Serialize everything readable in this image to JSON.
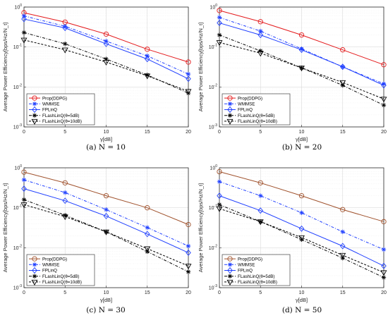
{
  "chart_data": [
    {
      "type": "line",
      "caption": "(a) N = 10",
      "x": [
        0,
        5,
        10,
        15,
        20
      ],
      "xlim": [
        0,
        20
      ],
      "ylim": [
        0.001,
        1
      ],
      "yscale": "log",
      "xlabel": "γ[dB]",
      "ylabel": "Average Power Efficiency[bps/Hz/N_t]",
      "grid": true,
      "legend_position": "bottom-left",
      "series": [
        {
          "name": "Prop(DDPG)",
          "color": "#e41a1c",
          "marker": "circle",
          "dash": "solid",
          "values": [
            0.72,
            0.42,
            0.21,
            0.088,
            0.042
          ]
        },
        {
          "name": "WMMSE",
          "color": "#1f3fff",
          "marker": "asterisk",
          "dash": "dashdot",
          "values": [
            0.6,
            0.33,
            0.14,
            0.06,
            0.021
          ]
        },
        {
          "name": "FPLinQ",
          "color": "#1f3fff",
          "marker": "diamond",
          "dash": "solid",
          "values": [
            0.5,
            0.3,
            0.12,
            0.05,
            0.016
          ]
        },
        {
          "name": "FLashLinQ(θ=5dB)",
          "color": "#000000",
          "marker": "asterisk",
          "dash": "dashdot",
          "values": [
            0.23,
            0.12,
            0.05,
            0.02,
            0.007
          ]
        },
        {
          "name": "FLashLinQ(θ=10dB)",
          "color": "#000000",
          "marker": "triangle-down",
          "dash": "dashed",
          "values": [
            0.15,
            0.085,
            0.042,
            0.019,
            0.0078
          ]
        }
      ]
    },
    {
      "type": "line",
      "caption": "(b) N = 20",
      "x": [
        0,
        5,
        10,
        15,
        20
      ],
      "xlim": [
        0,
        20
      ],
      "ylim": [
        0.001,
        1
      ],
      "yscale": "log",
      "xlabel": "γ[dB]",
      "ylabel": "Average Power Efficiency[bps/Hz/N_t]",
      "grid": true,
      "legend_position": "bottom-left",
      "series": [
        {
          "name": "Prop(DDPG)",
          "color": "#e41a1c",
          "marker": "circle",
          "dash": "solid",
          "values": [
            0.82,
            0.43,
            0.2,
            0.085,
            0.036
          ]
        },
        {
          "name": "WMMSE",
          "color": "#1f3fff",
          "marker": "asterisk",
          "dash": "dashdot",
          "values": [
            0.55,
            0.25,
            0.09,
            0.032,
            0.012
          ]
        },
        {
          "name": "FPLinQ",
          "color": "#1f3fff",
          "marker": "diamond",
          "dash": "solid",
          "values": [
            0.4,
            0.2,
            0.085,
            0.032,
            0.011
          ]
        },
        {
          "name": "FLashLinQ(θ=5dB)",
          "color": "#000000",
          "marker": "asterisk",
          "dash": "dashdot",
          "values": [
            0.2,
            0.08,
            0.03,
            0.011,
            0.0035
          ]
        },
        {
          "name": "FLashLinQ(θ=10dB)",
          "color": "#000000",
          "marker": "triangle-down",
          "dash": "dashed",
          "values": [
            0.13,
            0.07,
            0.03,
            0.013,
            0.005
          ]
        }
      ]
    },
    {
      "type": "line",
      "caption": "(c) N = 30",
      "x": [
        0,
        5,
        10,
        15,
        20
      ],
      "xlim": [
        0,
        20
      ],
      "ylim": [
        0.001,
        1
      ],
      "yscale": "log",
      "xlabel": "γ[dB]",
      "ylabel": "Average Power Efficiency[bps/Hz/N_t]",
      "grid": true,
      "legend_position": "bottom-left",
      "series": [
        {
          "name": "Prop(DDPG)",
          "color": "#a0522d",
          "marker": "circle",
          "dash": "solid",
          "values": [
            0.78,
            0.42,
            0.2,
            0.1,
            0.038
          ]
        },
        {
          "name": "WMMSE",
          "color": "#1f3fff",
          "marker": "asterisk",
          "dash": "dashdot",
          "values": [
            0.5,
            0.24,
            0.09,
            0.032,
            0.011
          ]
        },
        {
          "name": "FPLinQ",
          "color": "#1f3fff",
          "marker": "diamond",
          "dash": "solid",
          "values": [
            0.3,
            0.15,
            0.062,
            0.022,
            0.0075
          ]
        },
        {
          "name": "FLashLinQ(θ=5dB)",
          "color": "#000000",
          "marker": "asterisk",
          "dash": "dashdot",
          "values": [
            0.16,
            0.065,
            0.025,
            0.008,
            0.0025
          ]
        },
        {
          "name": "FLashLinQ(θ=10dB)",
          "color": "#000000",
          "marker": "triangle-down",
          "dash": "dashed",
          "values": [
            0.12,
            0.06,
            0.025,
            0.0095,
            0.0035
          ]
        }
      ]
    },
    {
      "type": "line",
      "caption": "(d) N = 50",
      "x": [
        0,
        5,
        10,
        15,
        20
      ],
      "xlim": [
        0,
        20
      ],
      "ylim": [
        0.001,
        1
      ],
      "yscale": "log",
      "xlabel": "γ[dB]",
      "ylabel": "Average Power Efficiency[bps/Hz/N_t]",
      "grid": true,
      "legend_position": "bottom-left",
      "series": [
        {
          "name": "Prop(DDPG)",
          "color": "#a0522d",
          "marker": "circle",
          "dash": "solid",
          "values": [
            0.8,
            0.42,
            0.2,
            0.09,
            0.045
          ]
        },
        {
          "name": "WMMSE",
          "color": "#1f3fff",
          "marker": "asterisk",
          "dash": "dashdot",
          "values": [
            0.45,
            0.2,
            0.075,
            0.025,
            0.009
          ]
        },
        {
          "name": "FPLinQ",
          "color": "#1f3fff",
          "marker": "diamond",
          "dash": "solid",
          "values": [
            0.2,
            0.085,
            0.03,
            0.011,
            0.0035
          ]
        },
        {
          "name": "FLashLinQ(θ=5dB)",
          "color": "#000000",
          "marker": "asterisk",
          "dash": "dashdot",
          "values": [
            0.12,
            0.045,
            0.016,
            0.0055,
            0.0018
          ]
        },
        {
          "name": "FLashLinQ(θ=10dB)",
          "color": "#000000",
          "marker": "triangle-down",
          "dash": "dashed",
          "values": [
            0.095,
            0.045,
            0.018,
            0.0065,
            0.0024
          ]
        }
      ]
    }
  ]
}
